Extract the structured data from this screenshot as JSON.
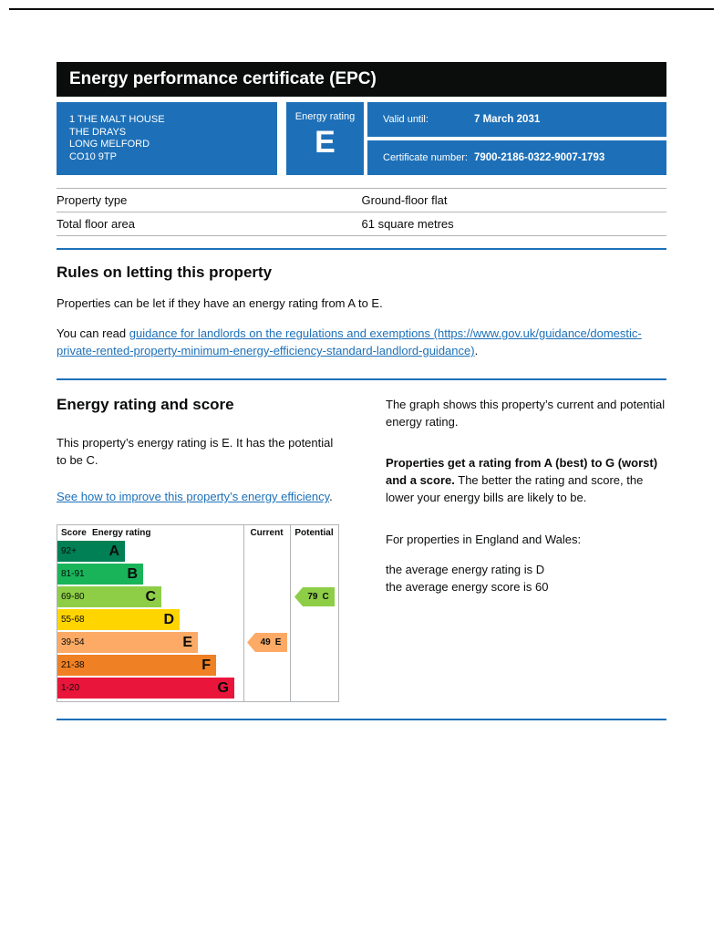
{
  "page": {
    "title": "Energy performance certificate (EPC)"
  },
  "summary": {
    "address_lines": [
      "1 THE MALT HOUSE",
      "THE DRAYS",
      "LONG MELFORD",
      "CO10 9TP"
    ],
    "energy_rating_label": "Energy rating",
    "energy_rating": "E",
    "valid_until_label": "Valid until:",
    "valid_until": "7 March 2031",
    "certificate_number_label": "Certificate number:",
    "certificate_number": "7900-2186-0322-9007-1793"
  },
  "property_details": {
    "rows": [
      {
        "label": "Property type",
        "value": "Ground-floor flat"
      },
      {
        "label": "Total floor area",
        "value": "61 square metres"
      }
    ]
  },
  "rules_section": {
    "heading": "Rules on letting this property",
    "paragraph1": "Properties can be let if they have an energy rating from A to E.",
    "paragraph2_prefix": "You can read ",
    "paragraph2_link": "guidance for landlords on the regulations and exemptions (https://www.gov.uk/guidance/domestic-private-rented-property-minimum-energy-efficiency-standard-landlord-guidance)",
    "paragraph2_suffix": "."
  },
  "rating_section": {
    "heading": "Energy rating and score",
    "intro": "This property’s energy rating is E. It has the potential to be C.",
    "improve_link": "See how to improve this property’s energy efficiency",
    "improve_link_suffix": ".",
    "right_column": {
      "para1": "The graph shows this property’s current and potential energy rating.",
      "para2_bold": "Properties get a rating from A (best) to G (worst) and a score.",
      "para2_rest": " The better the rating and score, the lower your energy bills are likely to be.",
      "para3": "For properties in England and Wales:",
      "para4_line1": "the average energy rating is D",
      "para4_line2": "the average energy score is 60"
    }
  },
  "chart_data": {
    "type": "bar",
    "title": "Energy rating and score chart",
    "headers": {
      "score": "Score",
      "rating": "Energy rating",
      "current": "Current",
      "potential": "Potential"
    },
    "bands": [
      {
        "score": "92+",
        "letter": "A",
        "color": "#008054"
      },
      {
        "score": "81-91",
        "letter": "B",
        "color": "#19b459"
      },
      {
        "score": "69-80",
        "letter": "C",
        "color": "#8dce46"
      },
      {
        "score": "55-68",
        "letter": "D",
        "color": "#ffd500"
      },
      {
        "score": "39-54",
        "letter": "E",
        "color": "#fcaa65"
      },
      {
        "score": "21-38",
        "letter": "F",
        "color": "#ef8023"
      },
      {
        "score": "1-20",
        "letter": "G",
        "color": "#e9153b"
      }
    ],
    "current": {
      "score": "49",
      "letter": "E",
      "band_index": 4,
      "color": "#fcaa65"
    },
    "potential": {
      "score": "79",
      "letter": "C",
      "band_index": 2,
      "color": "#8dce46"
    }
  },
  "colors": {
    "header_bg": "#0b0c0c",
    "brand_blue": "#1d70b8",
    "link": "#1d70b8",
    "border_gray": "#b1b4b6"
  }
}
